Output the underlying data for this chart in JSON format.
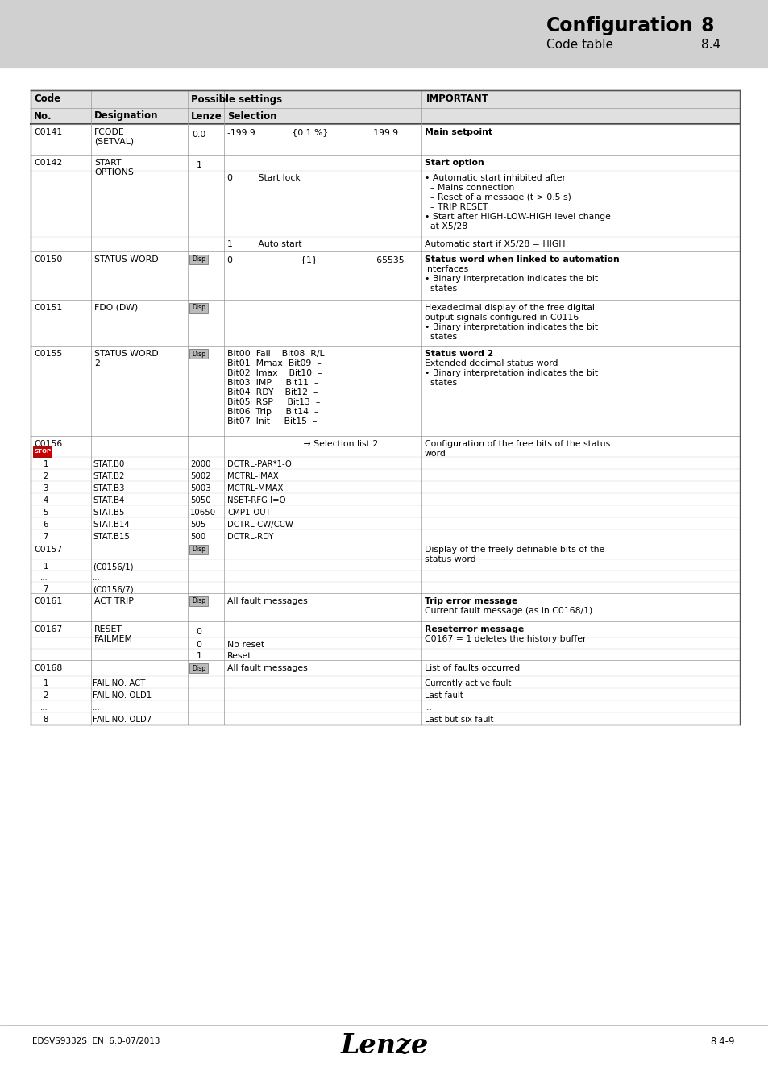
{
  "page_bg": "#d0d0d0",
  "table_header_bg": "#e0e0e0",
  "title_main": "Configuration",
  "title_sub": "Code table",
  "chapter_num": "8",
  "section_num": "8.4",
  "footer_left": "EDSVS9332S  EN  6.0-07/2013",
  "footer_right": "8.4-9",
  "footer_logo": "Lenze"
}
